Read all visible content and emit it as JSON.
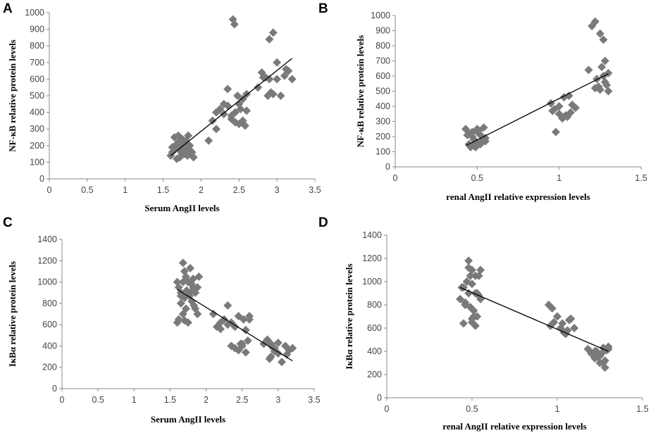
{
  "figure": {
    "panels": [
      "A",
      "B",
      "C",
      "D"
    ]
  },
  "chart_data": [
    {
      "panel": "A",
      "type": "scatter",
      "title": "",
      "xlabel": "Serum AngII levels",
      "ylabel": "NF-κB relative protein levels",
      "xlim": [
        0,
        3.5
      ],
      "ylim": [
        0,
        1000
      ],
      "xticks": [
        0,
        0.5,
        1,
        1.5,
        2,
        2.5,
        3,
        3.5
      ],
      "yticks": [
        0,
        100,
        200,
        300,
        400,
        500,
        600,
        700,
        800,
        900,
        1000
      ],
      "x": [
        1.6,
        1.62,
        1.65,
        1.68,
        1.7,
        1.72,
        1.75,
        1.78,
        1.8,
        1.82,
        1.85,
        1.88,
        1.9,
        1.65,
        1.7,
        1.75,
        1.8,
        1.85,
        1.68,
        1.72,
        1.78,
        1.82,
        1.7,
        1.75,
        1.62,
        1.88,
        1.68,
        1.73,
        1.77,
        1.83,
        2.1,
        2.15,
        2.2,
        2.25,
        2.3,
        2.35,
        2.4,
        2.45,
        2.5,
        2.55,
        2.6,
        2.2,
        2.3,
        2.4,
        2.5,
        2.55,
        2.45,
        2.58,
        2.35,
        2.48,
        2.52,
        2.6,
        2.42,
        2.44,
        2.75,
        2.8,
        2.85,
        2.9,
        2.95,
        3.0,
        3.05,
        3.1,
        3.15,
        3.2,
        2.9,
        2.95,
        3.0,
        2.92,
        3.12,
        2.88,
        2.82
      ],
      "y": [
        140,
        160,
        180,
        200,
        220,
        170,
        150,
        190,
        210,
        160,
        175,
        140,
        130,
        250,
        260,
        240,
        230,
        200,
        120,
        130,
        150,
        140,
        180,
        200,
        190,
        160,
        210,
        220,
        170,
        260,
        230,
        350,
        400,
        420,
        450,
        540,
        380,
        400,
        450,
        480,
        510,
        300,
        390,
        360,
        330,
        350,
        340,
        320,
        440,
        500,
        420,
        410,
        960,
        930,
        550,
        640,
        610,
        600,
        510,
        600,
        500,
        620,
        650,
        600,
        840,
        880,
        700,
        520,
        660,
        500,
        610
      ],
      "trendline": {
        "x": [
          1.6,
          3.2
        ],
        "y": [
          140,
          725
        ]
      }
    },
    {
      "panel": "B",
      "type": "scatter",
      "title": "",
      "xlabel": "renal AngII relative expression levels",
      "ylabel": "NF-κB relative protein levels",
      "xlim": [
        0,
        1.5
      ],
      "ylim": [
        0,
        1000
      ],
      "xticks": [
        0,
        0.5,
        1,
        1.5
      ],
      "yticks": [
        0,
        100,
        200,
        300,
        400,
        500,
        600,
        700,
        800,
        900,
        1000
      ],
      "x": [
        0.43,
        0.45,
        0.47,
        0.48,
        0.5,
        0.52,
        0.53,
        0.55,
        0.46,
        0.49,
        0.51,
        0.54,
        0.44,
        0.47,
        0.5,
        0.53,
        0.48,
        0.52,
        0.45,
        0.5,
        0.55,
        0.49,
        0.46,
        0.51,
        0.95,
        0.97,
        1.0,
        1.02,
        1.05,
        1.08,
        1.1,
        0.98,
        1.03,
        1.06,
        1.0,
        0.96,
        1.04,
        1.07,
        1.18,
        1.2,
        1.22,
        1.25,
        1.27,
        1.28,
        1.3,
        1.22,
        1.25,
        1.28,
        1.3,
        1.26,
        1.24,
        1.29,
        1.27,
        1.23
      ],
      "y": [
        250,
        220,
        200,
        180,
        160,
        150,
        170,
        190,
        140,
        130,
        240,
        260,
        210,
        230,
        250,
        200,
        180,
        160,
        150,
        140,
        170,
        160,
        130,
        220,
        420,
        380,
        350,
        320,
        330,
        410,
        390,
        230,
        460,
        470,
        400,
        370,
        340,
        360,
        640,
        930,
        960,
        880,
        600,
        560,
        500,
        520,
        510,
        700,
        620,
        660,
        530,
        540,
        840,
        580
      ],
      "trendline": {
        "x": [
          0.43,
          1.3
        ],
        "y": [
          140,
          615
        ]
      }
    },
    {
      "panel": "C",
      "type": "scatter",
      "title": "",
      "xlabel": "Serum AngII levels",
      "ylabel": "IκBα relative protein levels",
      "xlim": [
        0,
        3.5
      ],
      "ylim": [
        0,
        1400
      ],
      "xticks": [
        0,
        0.5,
        1,
        1.5,
        2,
        2.5,
        3,
        3.5
      ],
      "yticks": [
        0,
        200,
        400,
        600,
        800,
        1000,
        1200,
        1400
      ],
      "x": [
        1.6,
        1.62,
        1.65,
        1.68,
        1.7,
        1.72,
        1.75,
        1.78,
        1.8,
        1.82,
        1.85,
        1.88,
        1.9,
        1.65,
        1.7,
        1.75,
        1.8,
        1.85,
        1.68,
        1.72,
        1.78,
        1.82,
        1.7,
        1.75,
        1.62,
        1.88,
        1.68,
        1.73,
        1.77,
        1.83,
        1.6,
        1.65,
        2.1,
        2.15,
        2.2,
        2.25,
        2.3,
        2.35,
        2.4,
        2.45,
        2.5,
        2.55,
        2.6,
        2.2,
        2.3,
        2.4,
        2.5,
        2.55,
        2.45,
        2.58,
        2.35,
        2.48,
        2.52,
        2.6,
        2.8,
        2.85,
        2.9,
        2.95,
        3.0,
        3.05,
        3.1,
        3.15,
        3.2,
        2.9,
        2.95,
        3.0,
        2.92,
        3.12,
        2.88
      ],
      "y": [
        1000,
        950,
        900,
        1180,
        1100,
        1050,
        1000,
        1130,
        980,
        1030,
        900,
        950,
        1050,
        800,
        850,
        880,
        820,
        750,
        700,
        750,
        900,
        950,
        640,
        620,
        650,
        700,
        1000,
        920,
        870,
        780,
        620,
        870,
        700,
        580,
        560,
        650,
        780,
        620,
        580,
        680,
        400,
        550,
        650,
        620,
        600,
        380,
        420,
        340,
        360,
        450,
        400,
        420,
        650,
        680,
        420,
        460,
        300,
        380,
        330,
        250,
        400,
        360,
        380,
        420,
        350,
        430,
        390,
        320,
        280
      ],
      "trendline": {
        "x": [
          1.6,
          3.2
        ],
        "y": [
          930,
          260
        ]
      }
    },
    {
      "panel": "D",
      "type": "scatter",
      "title": "",
      "xlabel": "renal AngII relative expression levels",
      "ylabel": "IκBα relative protein levels",
      "xlim": [
        0,
        1.5
      ],
      "ylim": [
        0,
        1400
      ],
      "xticks": [
        0,
        0.5,
        1,
        1.5
      ],
      "yticks": [
        0,
        200,
        400,
        600,
        800,
        1000,
        1200,
        1400
      ],
      "x": [
        0.43,
        0.45,
        0.47,
        0.48,
        0.5,
        0.52,
        0.53,
        0.55,
        0.46,
        0.49,
        0.51,
        0.54,
        0.44,
        0.47,
        0.5,
        0.53,
        0.48,
        0.52,
        0.45,
        0.5,
        0.55,
        0.49,
        0.46,
        0.51,
        0.47,
        0.48,
        0.5,
        0.52,
        0.54,
        0.49,
        0.95,
        0.97,
        1.0,
        1.02,
        1.05,
        1.08,
        1.1,
        0.98,
        1.03,
        1.06,
        1.0,
        0.96,
        1.04,
        1.07,
        1.18,
        1.2,
        1.22,
        1.25,
        1.27,
        1.28,
        1.3,
        1.22,
        1.25,
        1.28,
        1.3,
        1.26,
        1.24,
        1.29,
        1.27,
        1.23
      ],
      "y": [
        850,
        950,
        1000,
        1180,
        1100,
        1050,
        900,
        1100,
        800,
        780,
        700,
        880,
        950,
        1000,
        650,
        700,
        1120,
        900,
        640,
        680,
        850,
        1050,
        820,
        750,
        1000,
        900,
        980,
        620,
        1050,
        780,
        800,
        770,
        700,
        600,
        550,
        680,
        600,
        650,
        640,
        580,
        700,
        620,
        560,
        670,
        420,
        380,
        400,
        360,
        430,
        320,
        440,
        340,
        300,
        260,
        420,
        380,
        350,
        410,
        300,
        400
      ],
      "trendline": {
        "x": [
          0.43,
          1.3
        ],
        "y": [
          950,
          400
        ]
      }
    }
  ]
}
